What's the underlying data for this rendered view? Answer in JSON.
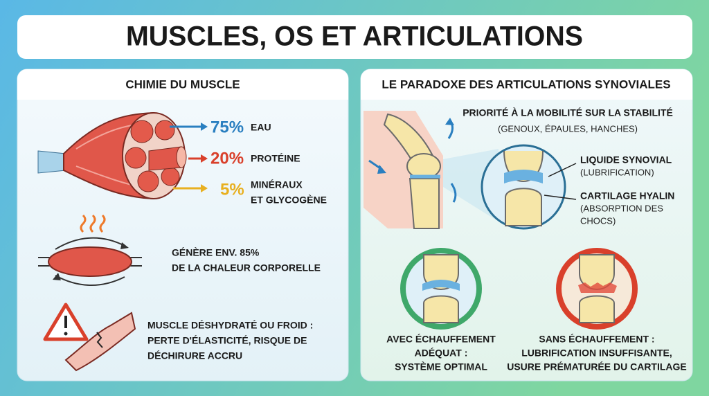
{
  "header": {
    "title": "MUSCLES, OS ET ARTICULATIONS"
  },
  "left": {
    "title": "CHIMIE DU MUSCLE",
    "composition": [
      {
        "value": "75%",
        "lines": [
          "EAU"
        ]
      },
      {
        "value": "20%",
        "lines": [
          "PROTÉINE"
        ]
      },
      {
        "value": "5%",
        "lines": [
          "MINÉRAUX",
          "ET GLYCOGÈNE"
        ]
      }
    ],
    "heat": {
      "lines": [
        "GÉNÈRE ENV. 85%",
        "DE LA CHALEUR CORPORELLE"
      ]
    },
    "warning": {
      "lines": [
        "MUSCLE DÉSHYDRATÉ OU FROID :",
        "PERTE D'ÉLASTICITÉ, RISQUE DE",
        "DÉCHIRURE ACCRU"
      ]
    }
  },
  "right": {
    "title": "LE PARADOXE DES ARTICULATIONS SYNOVIALES",
    "priority": {
      "lines": [
        "PRIORITÉ À LA MOBILITÉ SUR LA STABILITÉ",
        "(GENOUX, ÉPAULES, HANCHES)"
      ]
    },
    "callouts": [
      {
        "lines": [
          "LIQUIDE SYNOVIAL",
          "(LUBRIFICATION)"
        ]
      },
      {
        "lines": [
          "CARTILAGE HYALIN",
          "(ABSORPTION DES",
          "CHOCS)"
        ]
      }
    ],
    "outcomes": [
      {
        "lines": [
          "AVEC ÉCHAUFFEMENT",
          "ADÉQUAT :",
          "SYSTÈME OPTIMAL"
        ]
      },
      {
        "lines": [
          "SANS ÉCHAUFFEMENT :",
          "LUBRIFICATION INSUFFISANTE,",
          "USURE PRÉMATURÉE DU CARTILAGE"
        ]
      }
    ]
  }
}
